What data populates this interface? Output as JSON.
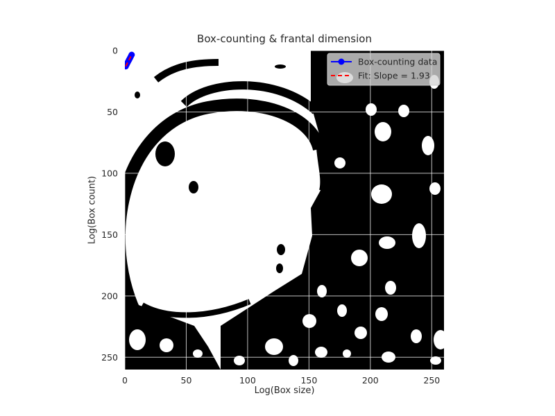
{
  "chart_data": {
    "type": "scatter",
    "title": "Box-counting & frantal dimension",
    "xlabel": "Log(Box size)",
    "ylabel": "Log(Box count)",
    "xlim": [
      0,
      260
    ],
    "ylim": [
      260,
      0
    ],
    "y_inverted": true,
    "xticks": [
      0,
      50,
      100,
      150,
      200,
      250
    ],
    "yticks": [
      0,
      50,
      100,
      150,
      200,
      250
    ],
    "grid": true,
    "legend_position": "top-right",
    "background": "binary segmentation image (black and white)",
    "series": [
      {
        "name": "Box-counting data",
        "style": "line-with-markers",
        "color": "#0000ff",
        "x": [
          0.69,
          1.39,
          2.08,
          2.77,
          3.47,
          4.16,
          4.85,
          5.55
        ],
        "y": [
          12.8,
          11.4,
          10.0,
          8.7,
          7.4,
          6.1,
          4.8,
          3.4
        ]
      },
      {
        "name": "Fit: Slope = 1.93",
        "style": "dashed-line",
        "color": "#ff0000",
        "x": [
          0.69,
          5.55
        ],
        "y": [
          12.8,
          3.4
        ]
      }
    ]
  }
}
